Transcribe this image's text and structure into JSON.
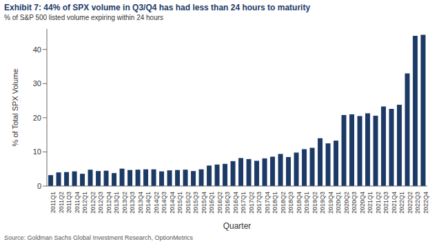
{
  "chart_data": {
    "type": "bar",
    "title": "Exhibit 7: 44% of SPX volume in Q3/Q4 has had less than 24 hours to maturity",
    "subtitle": "% of S&P 500 listed volume expiring within 24 hours",
    "source": "Source: Goldman Sachs Global Investment Research, OptionMetrics",
    "x_label": "Quarter",
    "y_label": "% of Total SPX Volume",
    "categories": [
      "2011Q1",
      "2011Q2",
      "2011Q3",
      "2011Q4",
      "2012Q1",
      "2012Q2",
      "2012Q3",
      "2012Q4",
      "2013Q1",
      "2013Q2",
      "2013Q3",
      "2013Q4",
      "2014Q1",
      "2014Q2",
      "2014Q3",
      "2014Q4",
      "2015Q1",
      "2015Q2",
      "2015Q3",
      "2015Q4",
      "2016Q1",
      "2016Q2",
      "2016Q3",
      "2016Q4",
      "2017Q1",
      "2017Q2",
      "2017Q3",
      "2017Q4",
      "2018Q1",
      "2018Q2",
      "2018Q3",
      "2018Q4",
      "2019Q1",
      "2019Q2",
      "2019Q3",
      "2019Q4",
      "2020Q1",
      "2020Q2",
      "2020Q3",
      "2020Q4",
      "2021Q1",
      "2021Q2",
      "2021Q3",
      "2021Q4",
      "2022Q1",
      "2022Q2",
      "2022Q3",
      "2022Q4"
    ],
    "values": [
      3.2,
      4.0,
      4.1,
      4.3,
      3.6,
      4.8,
      4.4,
      4.5,
      3.8,
      5.1,
      4.7,
      4.8,
      4.9,
      4.9,
      4.3,
      4.6,
      4.7,
      4.8,
      4.4,
      4.9,
      6.0,
      6.3,
      6.5,
      7.3,
      8.2,
      7.9,
      7.4,
      8.1,
      8.6,
      9.4,
      8.5,
      9.8,
      10.8,
      11.2,
      14.0,
      12.5,
      13.3,
      20.8,
      21.0,
      20.5,
      21.3,
      20.6,
      23.3,
      22.6,
      23.8,
      33.0,
      44.0,
      44.3
    ],
    "color": "#1c3a66",
    "ylim": [
      0,
      46
    ],
    "yticks": [
      0,
      10,
      20,
      30,
      40
    ],
    "grid": false
  }
}
